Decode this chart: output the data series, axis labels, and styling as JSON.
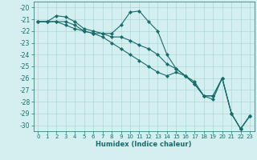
{
  "xlabel": "Humidex (Indice chaleur)",
  "bg_color": "#d4efef",
  "line_color": "#1a6b6b",
  "grid_color": "#afd8d8",
  "xlim": [
    -0.5,
    23.5
  ],
  "ylim": [
    -30.5,
    -19.5
  ],
  "yticks": [
    -20,
    -21,
    -22,
    -23,
    -24,
    -25,
    -26,
    -27,
    -28,
    -29,
    -30
  ],
  "xticks": [
    0,
    1,
    2,
    3,
    4,
    5,
    6,
    7,
    8,
    9,
    10,
    11,
    12,
    13,
    14,
    15,
    16,
    17,
    18,
    19,
    20,
    21,
    22,
    23
  ],
  "line1_y": [
    -21.2,
    -21.2,
    -20.7,
    -20.8,
    -21.2,
    -21.8,
    -22.0,
    -22.2,
    -22.2,
    -21.5,
    -20.4,
    -20.3,
    -21.2,
    -22.0,
    -24.0,
    -25.2,
    -25.8,
    -26.5,
    -27.5,
    -27.5,
    -26.0,
    -29.0,
    -30.3,
    -29.2
  ],
  "line2_y": [
    -21.2,
    -21.2,
    -21.2,
    -21.5,
    -21.8,
    -22.0,
    -22.2,
    -22.2,
    -22.5,
    -22.5,
    -22.8,
    -23.2,
    -23.5,
    -24.0,
    -24.8,
    -25.2,
    -25.8,
    -26.5,
    -27.5,
    -27.5,
    -26.0,
    -29.0,
    -30.3,
    -29.2
  ],
  "line3_y": [
    -21.2,
    -21.2,
    -21.2,
    -21.2,
    -21.5,
    -22.0,
    -22.2,
    -22.5,
    -23.0,
    -23.5,
    -24.0,
    -24.5,
    -25.0,
    -25.5,
    -25.8,
    -25.5,
    -25.8,
    -26.3,
    -27.5,
    -27.8,
    -26.0,
    -29.0,
    -30.3,
    -29.2
  ],
  "marker": "D",
  "marker_size": 2.2,
  "line_width": 0.8
}
